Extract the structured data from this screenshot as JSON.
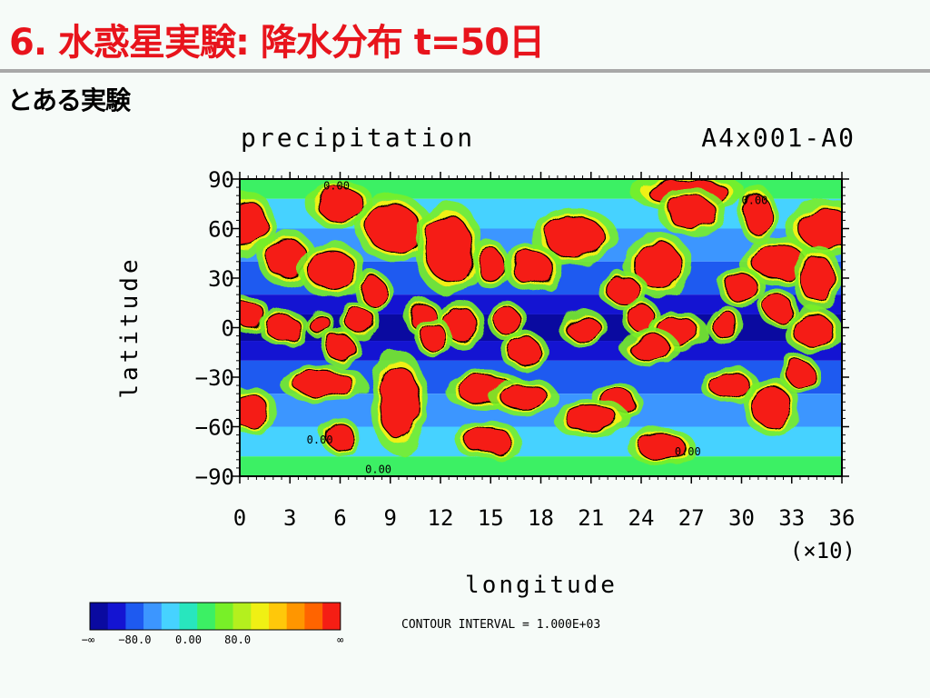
{
  "slide": {
    "title": "6. 水惑星実験: 降水分布 t=50日",
    "subtitle": "とある実験"
  },
  "chart_data": {
    "type": "heatmap",
    "title": "precipitation",
    "run_label": "A4x001-A0",
    "xlabel": "longitude",
    "ylabel": "latitude",
    "x_multiplier_label": "(×10)",
    "x_ticks": [
      "0",
      "3",
      "6",
      "9",
      "12",
      "15",
      "18",
      "21",
      "24",
      "27",
      "30",
      "33",
      "36"
    ],
    "y_ticks": [
      "90",
      "60",
      "30",
      "0",
      "−30",
      "−60",
      "−90"
    ],
    "xlim": [
      0,
      360
    ],
    "ylim": [
      -90,
      90
    ],
    "contour_interval": "CONTOUR INTERVAL = 1.000E+03",
    "contour_labels": [
      "0.00",
      "0.00",
      "0.00",
      "0.00",
      "0.00"
    ],
    "colorbar": {
      "colors": [
        "#0a0aa0",
        "#1414d2",
        "#1e5af0",
        "#3c96ff",
        "#46d2ff",
        "#28e6be",
        "#3cf064",
        "#78f028",
        "#b4f01e",
        "#f0f014",
        "#ffc80a",
        "#ff9600",
        "#ff6400",
        "#f51e14"
      ],
      "tick_labels": [
        "−∞",
        "−80.0",
        "0.00",
        "80.0",
        "∞"
      ]
    },
    "bands": [
      {
        "lat": [
          78,
          90
        ],
        "level": 6
      },
      {
        "lat": [
          60,
          78
        ],
        "level": 4
      },
      {
        "lat": [
          40,
          60
        ],
        "level": 3
      },
      {
        "lat": [
          20,
          40
        ],
        "level": 2
      },
      {
        "lat": [
          8,
          20
        ],
        "level": 1
      },
      {
        "lat": [
          -8,
          8
        ],
        "level": 0
      },
      {
        "lat": [
          -20,
          -8
        ],
        "level": 1
      },
      {
        "lat": [
          -40,
          -20
        ],
        "level": 2
      },
      {
        "lat": [
          -60,
          -40
        ],
        "level": 3
      },
      {
        "lat": [
          -78,
          -60
        ],
        "level": 4
      },
      {
        "lat": [
          -90,
          -78
        ],
        "level": 6
      }
    ],
    "cells": [
      {
        "lon": 4,
        "lat": 63,
        "w": 12,
        "h": 14
      },
      {
        "lon": 60,
        "lat": 75,
        "w": 14,
        "h": 10
      },
      {
        "lon": 92,
        "lat": 60,
        "w": 16,
        "h": 14
      },
      {
        "lon": 125,
        "lat": 48,
        "w": 14,
        "h": 20
      },
      {
        "lon": 200,
        "lat": 55,
        "w": 18,
        "h": 12
      },
      {
        "lon": 268,
        "lat": 82,
        "w": 24,
        "h": 8
      },
      {
        "lon": 270,
        "lat": 70,
        "w": 14,
        "h": 10
      },
      {
        "lon": 310,
        "lat": 68,
        "w": 8,
        "h": 12
      },
      {
        "lon": 350,
        "lat": 60,
        "w": 16,
        "h": 12
      },
      {
        "lon": 28,
        "lat": 42,
        "w": 12,
        "h": 12
      },
      {
        "lon": 55,
        "lat": 35,
        "w": 14,
        "h": 12
      },
      {
        "lon": 150,
        "lat": 38,
        "w": 8,
        "h": 10
      },
      {
        "lon": 175,
        "lat": 36,
        "w": 12,
        "h": 10
      },
      {
        "lon": 250,
        "lat": 38,
        "w": 14,
        "h": 14
      },
      {
        "lon": 322,
        "lat": 40,
        "w": 16,
        "h": 10
      },
      {
        "lon": 345,
        "lat": 30,
        "w": 10,
        "h": 14
      },
      {
        "lon": 300,
        "lat": 24,
        "w": 10,
        "h": 8
      },
      {
        "lon": 80,
        "lat": 22,
        "w": 8,
        "h": 8
      },
      {
        "lon": 230,
        "lat": 22,
        "w": 10,
        "h": 8
      },
      {
        "lon": 6,
        "lat": 8,
        "w": 8,
        "h": 8
      },
      {
        "lon": 26,
        "lat": 0,
        "w": 10,
        "h": 8
      },
      {
        "lon": 48,
        "lat": 2,
        "w": 6,
        "h": 6
      },
      {
        "lon": 72,
        "lat": 4,
        "w": 8,
        "h": 8
      },
      {
        "lon": 110,
        "lat": 6,
        "w": 8,
        "h": 8
      },
      {
        "lon": 132,
        "lat": 2,
        "w": 10,
        "h": 10
      },
      {
        "lon": 160,
        "lat": 4,
        "w": 8,
        "h": 8
      },
      {
        "lon": 205,
        "lat": 0,
        "w": 10,
        "h": 8
      },
      {
        "lon": 240,
        "lat": 6,
        "w": 8,
        "h": 8
      },
      {
        "lon": 262,
        "lat": -2,
        "w": 12,
        "h": 8
      },
      {
        "lon": 290,
        "lat": 2,
        "w": 8,
        "h": 8
      },
      {
        "lon": 322,
        "lat": 12,
        "w": 8,
        "h": 8
      },
      {
        "lon": 343,
        "lat": -2,
        "w": 12,
        "h": 10
      },
      {
        "lon": 116,
        "lat": -6,
        "w": 8,
        "h": 8
      },
      {
        "lon": 60,
        "lat": -12,
        "w": 8,
        "h": 8
      },
      {
        "lon": 170,
        "lat": -14,
        "w": 10,
        "h": 8
      },
      {
        "lon": 245,
        "lat": -12,
        "w": 12,
        "h": 8
      },
      {
        "lon": 50,
        "lat": -34,
        "w": 18,
        "h": 8
      },
      {
        "lon": 95,
        "lat": -45,
        "w": 12,
        "h": 22
      },
      {
        "lon": 148,
        "lat": -38,
        "w": 18,
        "h": 8
      },
      {
        "lon": 170,
        "lat": -42,
        "w": 14,
        "h": 8
      },
      {
        "lon": 225,
        "lat": -44,
        "w": 10,
        "h": 8
      },
      {
        "lon": 293,
        "lat": -35,
        "w": 12,
        "h": 8
      },
      {
        "lon": 318,
        "lat": -48,
        "w": 12,
        "h": 12
      },
      {
        "lon": 335,
        "lat": -28,
        "w": 8,
        "h": 8
      },
      {
        "lon": 5,
        "lat": -50,
        "w": 12,
        "h": 10
      },
      {
        "lon": 210,
        "lat": -55,
        "w": 16,
        "h": 8
      },
      {
        "lon": 148,
        "lat": -68,
        "w": 14,
        "h": 8
      },
      {
        "lon": 60,
        "lat": -66,
        "w": 8,
        "h": 8
      },
      {
        "lon": 252,
        "lat": -72,
        "w": 14,
        "h": 8
      }
    ]
  }
}
